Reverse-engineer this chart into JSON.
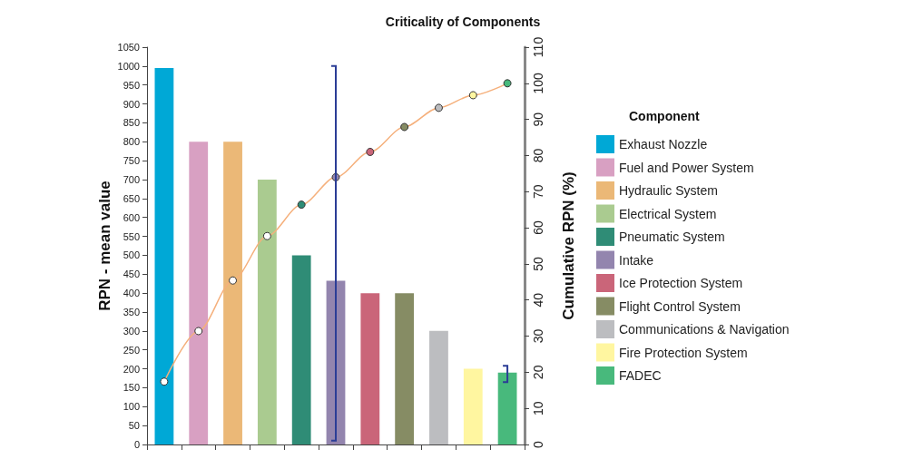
{
  "chart_data": {
    "type": "bar",
    "title": "Criticality of Components",
    "ylabel": "RPN - mean value",
    "y2label": "Cumulative RPN (%)",
    "legend_title": "Component",
    "categories": [
      null,
      null,
      null,
      null,
      null,
      null,
      null,
      null,
      null,
      null,
      null
    ],
    "series": [
      {
        "name": "Exhaust Nozzle",
        "color": "#00a8d6",
        "values": [
          995,
          null,
          null,
          null,
          null,
          null,
          null,
          null,
          null,
          null,
          null
        ]
      },
      {
        "name": "Fuel and Power System",
        "color": "#d8a0c2",
        "values": [
          null,
          800,
          null,
          null,
          null,
          null,
          null,
          null,
          null,
          null,
          null
        ]
      },
      {
        "name": "Hydraulic System",
        "color": "#ebb877",
        "values": [
          null,
          null,
          800,
          null,
          null,
          null,
          null,
          null,
          null,
          null,
          null
        ]
      },
      {
        "name": "Electrical System",
        "color": "#aacb90",
        "values": [
          null,
          null,
          null,
          700,
          null,
          null,
          null,
          null,
          null,
          null,
          null
        ]
      },
      {
        "name": "Pneumatic System",
        "color": "#2f8c76",
        "values": [
          null,
          null,
          null,
          null,
          500,
          null,
          null,
          null,
          null,
          null,
          null
        ]
      },
      {
        "name": "Intake",
        "color": "#9385ae",
        "values": [
          null,
          null,
          null,
          null,
          null,
          433,
          null,
          null,
          null,
          null,
          null
        ],
        "errors": [
          null,
          null,
          null,
          null,
          null,
          [
            10,
            1000
          ],
          null,
          null,
          null,
          null,
          null
        ]
      },
      {
        "name": "Ice Protection System",
        "color": "#ca6579",
        "values": [
          null,
          null,
          null,
          null,
          null,
          null,
          400,
          null,
          null,
          null,
          null
        ]
      },
      {
        "name": "Flight Control System",
        "color": "#868c64",
        "values": [
          null,
          null,
          null,
          null,
          null,
          null,
          null,
          400,
          null,
          null,
          null
        ]
      },
      {
        "name": "Communications & Navigation",
        "color": "#bcbdc0",
        "values": [
          null,
          null,
          null,
          null,
          null,
          null,
          null,
          null,
          300,
          null,
          null
        ]
      },
      {
        "name": "Fire Protection System",
        "color": "#fff6a0",
        "values": [
          null,
          null,
          null,
          null,
          null,
          null,
          null,
          null,
          null,
          200,
          null
        ]
      },
      {
        "name": "FADEC",
        "color": "#48b97c",
        "values": [
          null,
          null,
          null,
          null,
          null,
          null,
          null,
          null,
          null,
          null,
          190
        ],
        "errors": [
          null,
          null,
          null,
          null,
          null,
          null,
          null,
          null,
          null,
          null,
          [
            165,
            208
          ]
        ]
      },
      {
        "type": "line",
        "axis": "y2",
        "color": "#f5b07c",
        "marker": "circle",
        "values": [
          17.4,
          31.4,
          45.4,
          57.7,
          66.4,
          74.0,
          81.0,
          87.9,
          93.2,
          96.7,
          100
        ],
        "colors": [
          "#ffffff",
          "#ffffff",
          "#ffffff",
          "#ffffff",
          "#2f8c76",
          "#9385ae",
          "#ca6579",
          "#868c64",
          "#bcbdc0",
          "#fff6a0",
          "#48b97c"
        ]
      }
    ],
    "ylim": [
      0,
      1050
    ],
    "yticks": [
      0,
      50,
      100,
      150,
      200,
      250,
      300,
      350,
      400,
      450,
      500,
      550,
      600,
      650,
      700,
      750,
      800,
      850,
      900,
      950,
      1000,
      1050
    ],
    "y2lim": [
      0,
      110
    ],
    "y2ticks": [
      0,
      10,
      20,
      30,
      40,
      50,
      60,
      70,
      80,
      90,
      100,
      110
    ],
    "tick_labels": "y",
    "grid": false,
    "legend": "right"
  }
}
